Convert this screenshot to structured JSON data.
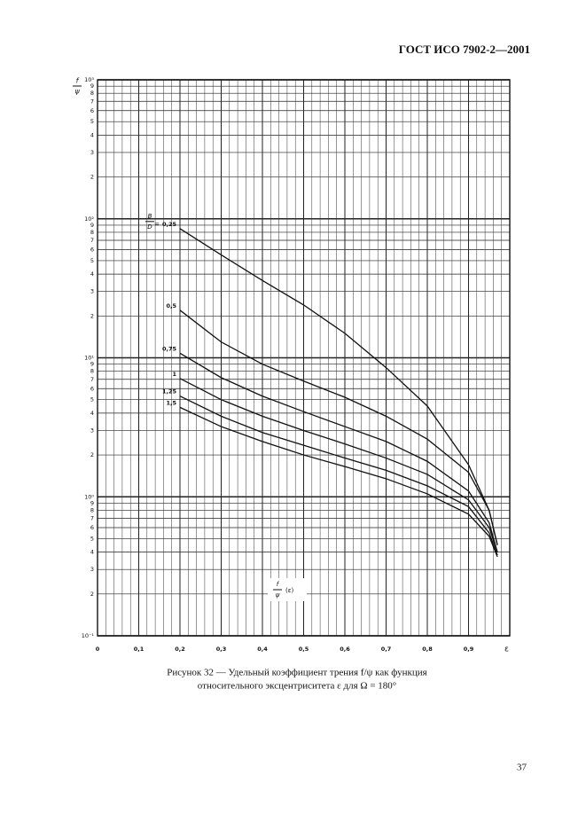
{
  "header": {
    "title": "ГОСТ ИСО 7902-2—2001"
  },
  "chart_data": {
    "type": "line",
    "y_label": {
      "numerator": "f",
      "denominator": "ψ"
    },
    "x_label": "ε",
    "function_label": {
      "numerator": "f",
      "denominator": "ψ",
      "argument": "(ε)"
    },
    "param_label": {
      "numerator": "B",
      "denominator": "D",
      "sign": "="
    },
    "log_y": true,
    "grid": true,
    "color": "#111111",
    "xlim": [
      0,
      1.0
    ],
    "ylim": [
      0.1,
      1000
    ],
    "xticks": [
      {
        "value": 0,
        "label": "0"
      },
      {
        "value": 0.1,
        "label": "0,1"
      },
      {
        "value": 0.2,
        "label": "0,2"
      },
      {
        "value": 0.3,
        "label": "0,3"
      },
      {
        "value": 0.4,
        "label": "0,4"
      },
      {
        "value": 0.5,
        "label": "0,5"
      },
      {
        "value": 0.6,
        "label": "0,6"
      },
      {
        "value": 0.7,
        "label": "0,7"
      },
      {
        "value": 0.8,
        "label": "0,8"
      },
      {
        "value": 0.9,
        "label": "0,9"
      }
    ],
    "yticks": [
      {
        "value": 0.1,
        "label": "10⁻¹"
      },
      {
        "value": 0.2,
        "label": "2"
      },
      {
        "value": 0.3,
        "label": "3"
      },
      {
        "value": 0.4,
        "label": "4"
      },
      {
        "value": 0.5,
        "label": "5"
      },
      {
        "value": 0.6,
        "label": "6"
      },
      {
        "value": 0.7,
        "label": "7"
      },
      {
        "value": 0.8,
        "label": "8"
      },
      {
        "value": 0.9,
        "label": "9"
      },
      {
        "value": 1,
        "label": "10⁰"
      },
      2,
      3,
      4,
      5,
      6,
      7,
      8,
      9,
      {
        "value": 10,
        "label": "10¹"
      },
      {
        "value": 20,
        "label": "2"
      },
      {
        "value": 30,
        "label": "3"
      },
      {
        "value": 40,
        "label": "4"
      },
      {
        "value": 50,
        "label": "5"
      },
      {
        "value": 60,
        "label": "6"
      },
      {
        "value": 70,
        "label": "7"
      },
      {
        "value": 80,
        "label": "8"
      },
      {
        "value": 90,
        "label": "9"
      },
      {
        "value": 100,
        "label": "10²"
      },
      {
        "value": 200,
        "label": "2"
      },
      {
        "value": 300,
        "label": "3"
      },
      {
        "value": 400,
        "label": "4"
      },
      {
        "value": 500,
        "label": "5"
      },
      {
        "value": 600,
        "label": "6"
      },
      {
        "value": 700,
        "label": "7"
      },
      {
        "value": 800,
        "label": "8"
      },
      {
        "value": 900,
        "label": "9"
      },
      {
        "value": 1000,
        "label": "10³"
      }
    ],
    "x": [
      0.2,
      0.3,
      0.4,
      0.5,
      0.6,
      0.7,
      0.8,
      0.9,
      0.95,
      0.97
    ],
    "series": [
      {
        "name": "0,25",
        "values": [
          85,
          55,
          36,
          24,
          15,
          8.5,
          4.5,
          1.7,
          0.8,
          0.45
        ]
      },
      {
        "name": "0,5",
        "values": [
          22,
          13,
          9,
          6.8,
          5.2,
          3.8,
          2.6,
          1.5,
          0.8,
          0.45
        ]
      },
      {
        "name": "0,75",
        "values": [
          10.8,
          7.2,
          5.3,
          4.1,
          3.2,
          2.5,
          1.8,
          1.1,
          0.65,
          0.4
        ]
      },
      {
        "name": "1",
        "values": [
          7.1,
          5.0,
          3.8,
          3.0,
          2.4,
          1.9,
          1.45,
          0.95,
          0.6,
          0.4
        ]
      },
      {
        "name": "1,25",
        "values": [
          5.3,
          3.8,
          2.9,
          2.35,
          1.9,
          1.55,
          1.2,
          0.85,
          0.55,
          0.38
        ]
      },
      {
        "name": "1,5",
        "values": [
          4.4,
          3.2,
          2.5,
          2.0,
          1.65,
          1.35,
          1.05,
          0.75,
          0.52,
          0.37
        ]
      }
    ]
  },
  "caption": [
    "Рисунок 32 — Удельный коэффициент трения f/ψ как функция",
    "относительного эксцентриситета ε для Ω = 180°"
  ],
  "page_number": "37"
}
